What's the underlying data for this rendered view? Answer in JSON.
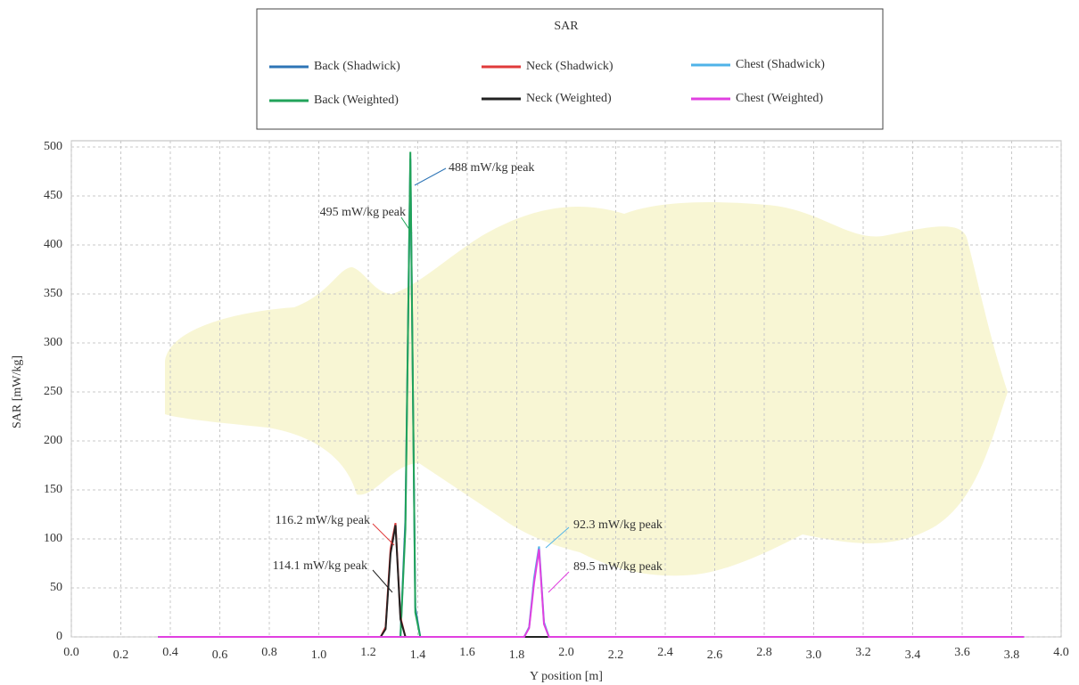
{
  "chart_data": {
    "type": "line",
    "legend_title": "SAR",
    "x_label": "Y position [m]",
    "y_label": "SAR [mW/kg]",
    "xlim": [
      0,
      4
    ],
    "xticks": [
      {
        "value": 0,
        "label": "0.0"
      },
      0.2,
      0.4,
      0.6,
      0.8,
      {
        "value": 1,
        "label": "1.0"
      },
      1.2,
      1.4,
      1.6,
      1.8,
      {
        "value": 2,
        "label": "2.0"
      },
      2.2,
      2.4,
      2.6,
      2.8,
      {
        "value": 3,
        "label": "3.0"
      },
      3.2,
      3.4,
      3.6,
      3.8,
      {
        "value": 4,
        "label": "4.0"
      }
    ],
    "ylim": [
      0,
      500
    ],
    "yticks": [
      0,
      50,
      100,
      150,
      200,
      250,
      300,
      350,
      400,
      450,
      500
    ],
    "grid": true,
    "series": [
      {
        "name": "Back (Shadwick)",
        "color": "#2e75b6",
        "x": [
          0.35,
          1.33,
          1.35,
          1.37,
          1.39,
          1.41,
          3.85
        ],
        "values": [
          0,
          0,
          120,
          488,
          30,
          0,
          0
        ]
      },
      {
        "name": "Back (Weighted)",
        "color": "#21a35a",
        "x": [
          0.35,
          1.33,
          1.35,
          1.37,
          1.39,
          1.41,
          3.85
        ],
        "values": [
          0,
          0,
          110,
          495,
          25,
          0,
          0
        ]
      },
      {
        "name": "Neck (Shadwick)",
        "color": "#e03a3a",
        "x": [
          0.35,
          1.25,
          1.27,
          1.29,
          1.31,
          1.33,
          1.35,
          3.85
        ],
        "values": [
          0,
          0,
          10,
          90,
          116.2,
          20,
          0,
          0
        ]
      },
      {
        "name": "Neck (Weighted)",
        "color": "#222222",
        "x": [
          0.35,
          1.25,
          1.27,
          1.29,
          1.31,
          1.33,
          1.35,
          3.85
        ],
        "values": [
          0,
          0,
          8,
          85,
          114.1,
          18,
          0,
          0
        ]
      },
      {
        "name": "Chest (Shadwick)",
        "color": "#4fb3e8",
        "x": [
          0.35,
          1.83,
          1.85,
          1.87,
          1.89,
          1.91,
          1.93,
          3.85
        ],
        "values": [
          0,
          0,
          10,
          60,
          92.3,
          15,
          0,
          0
        ]
      },
      {
        "name": "Chest (Weighted)",
        "color": "#e040e0",
        "x": [
          0.35,
          1.83,
          1.85,
          1.87,
          1.89,
          1.91,
          1.93,
          3.85
        ],
        "values": [
          0,
          0,
          9,
          55,
          89.5,
          13,
          0,
          0
        ]
      }
    ],
    "annotations": [
      "488 mW/kg peak",
      "495 mW/kg peak",
      "116.2 mW/kg peak",
      "114.1 mW/kg peak",
      "92.3 mW/kg peak",
      "89.5 mW/kg peak"
    ]
  }
}
